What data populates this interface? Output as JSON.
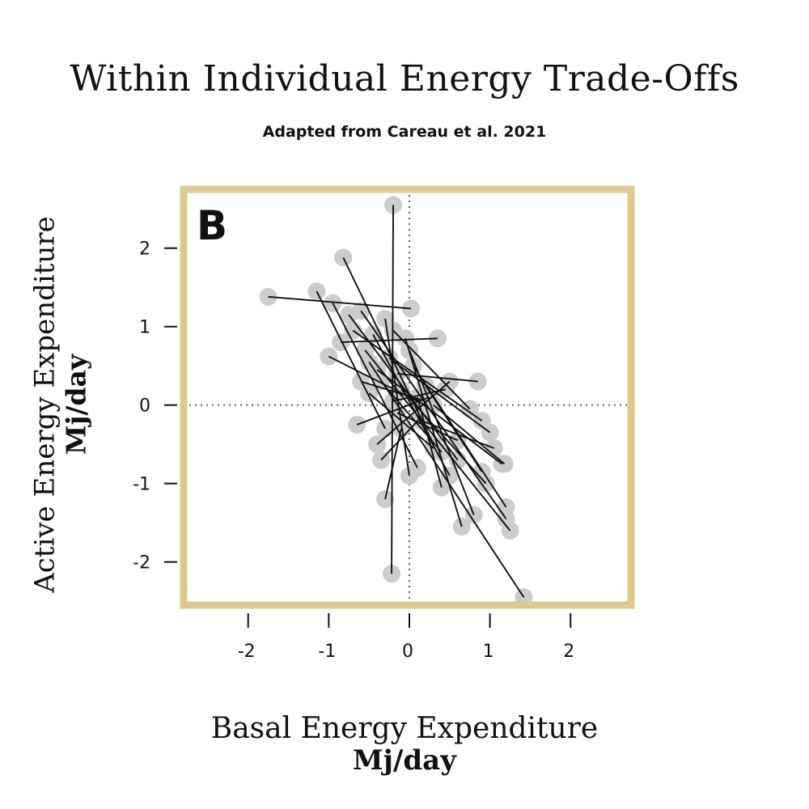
{
  "chart_data": {
    "type": "scatter",
    "title": "Within Individual Energy Trade-Offs",
    "subtitle": "Adapted from Careau et al. 2021",
    "panel_label": "B",
    "xlabel": "Basal  Energy Expenditure",
    "xunit": "Mj/day",
    "ylabel": "Active Energy Expenditure",
    "yunit": "Mj/day",
    "xlim": [
      -2.8,
      2.75
    ],
    "ylim": [
      -2.55,
      2.75
    ],
    "xticks": [
      -2,
      -1,
      0,
      1,
      2
    ],
    "yticks": [
      2,
      1,
      0,
      -1,
      -2
    ],
    "xtick_labels": [
      "-2",
      "-1",
      "0",
      "1",
      "2"
    ],
    "ytick_labels": [
      "2",
      "1",
      "0",
      "-1",
      "-2"
    ],
    "reference_lines": {
      "x": 0,
      "y": 0,
      "style": "dotted"
    },
    "colors": {
      "frame": "#dfc88e",
      "points": "#cccccc",
      "lines": "#111111",
      "ref": "#666666"
    },
    "segments": [
      {
        "x1": -1.75,
        "y1": 1.38,
        "x2": 0.02,
        "y2": 1.23
      },
      {
        "x1": -0.2,
        "y1": 2.55,
        "x2": -0.22,
        "y2": -2.15
      },
      {
        "x1": -0.82,
        "y1": 1.88,
        "x2": 0.3,
        "y2": -0.5
      },
      {
        "x1": -1.15,
        "y1": 1.45,
        "x2": -0.3,
        "y2": -0.3
      },
      {
        "x1": -0.95,
        "y1": 1.3,
        "x2": 0.1,
        "y2": -0.8
      },
      {
        "x1": -0.85,
        "y1": 0.8,
        "x2": 0.35,
        "y2": 0.85
      },
      {
        "x1": -0.75,
        "y1": 1.15,
        "x2": 0.6,
        "y2": -0.7
      },
      {
        "x1": -0.7,
        "y1": 0.95,
        "x2": 0.9,
        "y2": -0.2
      },
      {
        "x1": -0.6,
        "y1": 1.2,
        "x2": 1.2,
        "y2": -1.45
      },
      {
        "x1": -0.55,
        "y1": 0.7,
        "x2": 1.25,
        "y2": -1.6
      },
      {
        "x1": -0.5,
        "y1": 0.55,
        "x2": 1.42,
        "y2": -2.45
      },
      {
        "x1": -0.45,
        "y1": 0.9,
        "x2": 0.5,
        "y2": -0.9
      },
      {
        "x1": -0.4,
        "y1": 0.45,
        "x2": 1.15,
        "y2": -0.75
      },
      {
        "x1": -0.35,
        "y1": 0.3,
        "x2": 0.4,
        "y2": -0.6
      },
      {
        "x1": -0.3,
        "y1": 1.1,
        "x2": 0.0,
        "y2": -0.9
      },
      {
        "x1": -0.25,
        "y1": 0.6,
        "x2": 1.0,
        "y2": -0.35
      },
      {
        "x1": -0.6,
        "y1": 0.3,
        "x2": 0.2,
        "y2": 0.05
      },
      {
        "x1": -0.2,
        "y1": 0.95,
        "x2": 0.75,
        "y2": -0.05
      },
      {
        "x1": -0.15,
        "y1": 0.4,
        "x2": 0.85,
        "y2": 0.3
      },
      {
        "x1": -0.1,
        "y1": 0.2,
        "x2": 0.95,
        "y2": -1.0
      },
      {
        "x1": -0.05,
        "y1": 0.85,
        "x2": 0.65,
        "y2": -1.55
      },
      {
        "x1": 0.0,
        "y1": 0.7,
        "x2": 0.8,
        "y2": -1.4
      },
      {
        "x1": 0.05,
        "y1": 0.5,
        "x2": 1.2,
        "y2": -1.3
      },
      {
        "x1": -0.65,
        "y1": -0.25,
        "x2": 0.25,
        "y2": 0.1
      },
      {
        "x1": -0.4,
        "y1": -0.5,
        "x2": 0.5,
        "y2": 0.3
      },
      {
        "x1": -0.3,
        "y1": -1.2,
        "x2": -0.1,
        "y2": -0.3
      },
      {
        "x1": -0.15,
        "y1": -0.1,
        "x2": 0.6,
        "y2": -0.45
      },
      {
        "x1": 0.1,
        "y1": 0.1,
        "x2": 0.4,
        "y2": -1.05
      },
      {
        "x1": -1.0,
        "y1": 0.62,
        "x2": 0.1,
        "y2": 0.05
      },
      {
        "x1": -0.5,
        "y1": 0.15,
        "x2": 0.3,
        "y2": -0.55
      },
      {
        "x1": 0.15,
        "y1": -0.2,
        "x2": 1.05,
        "y2": -0.55
      },
      {
        "x1": 0.2,
        "y1": 0.25,
        "x2": 0.9,
        "y2": -0.85
      },
      {
        "x1": -0.35,
        "y1": -0.7,
        "x2": 0.15,
        "y2": -0.15
      },
      {
        "x1": 0.3,
        "y1": 0.0,
        "x2": 1.18,
        "y2": -0.75
      },
      {
        "x1": -0.2,
        "y1": 0.05,
        "x2": 0.45,
        "y2": 0.2
      }
    ]
  }
}
